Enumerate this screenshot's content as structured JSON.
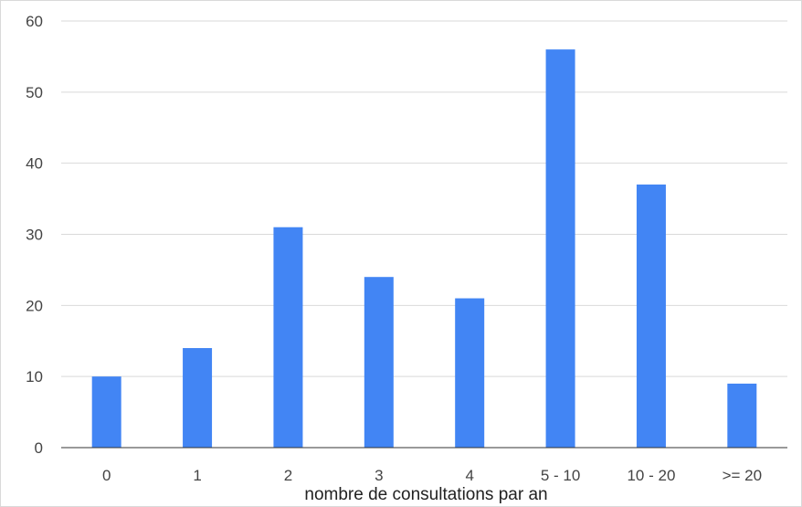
{
  "chart_data": {
    "type": "bar",
    "title": "",
    "xlabel": "nombre de consultations par an",
    "ylabel": "",
    "categories": [
      "0",
      "1",
      "2",
      "3",
      "4",
      "5 - 10",
      "10 - 20",
      ">= 20"
    ],
    "series": [
      {
        "values": [
          10,
          14,
          31,
          24,
          21,
          56,
          37,
          9
        ]
      }
    ],
    "ylim": [
      0,
      60
    ],
    "yticks": [
      "0",
      "10",
      "20",
      "30",
      "40",
      "50",
      "60"
    ],
    "grid": true,
    "legend": "none",
    "colors": {
      "bar": "#4285f4"
    }
  }
}
